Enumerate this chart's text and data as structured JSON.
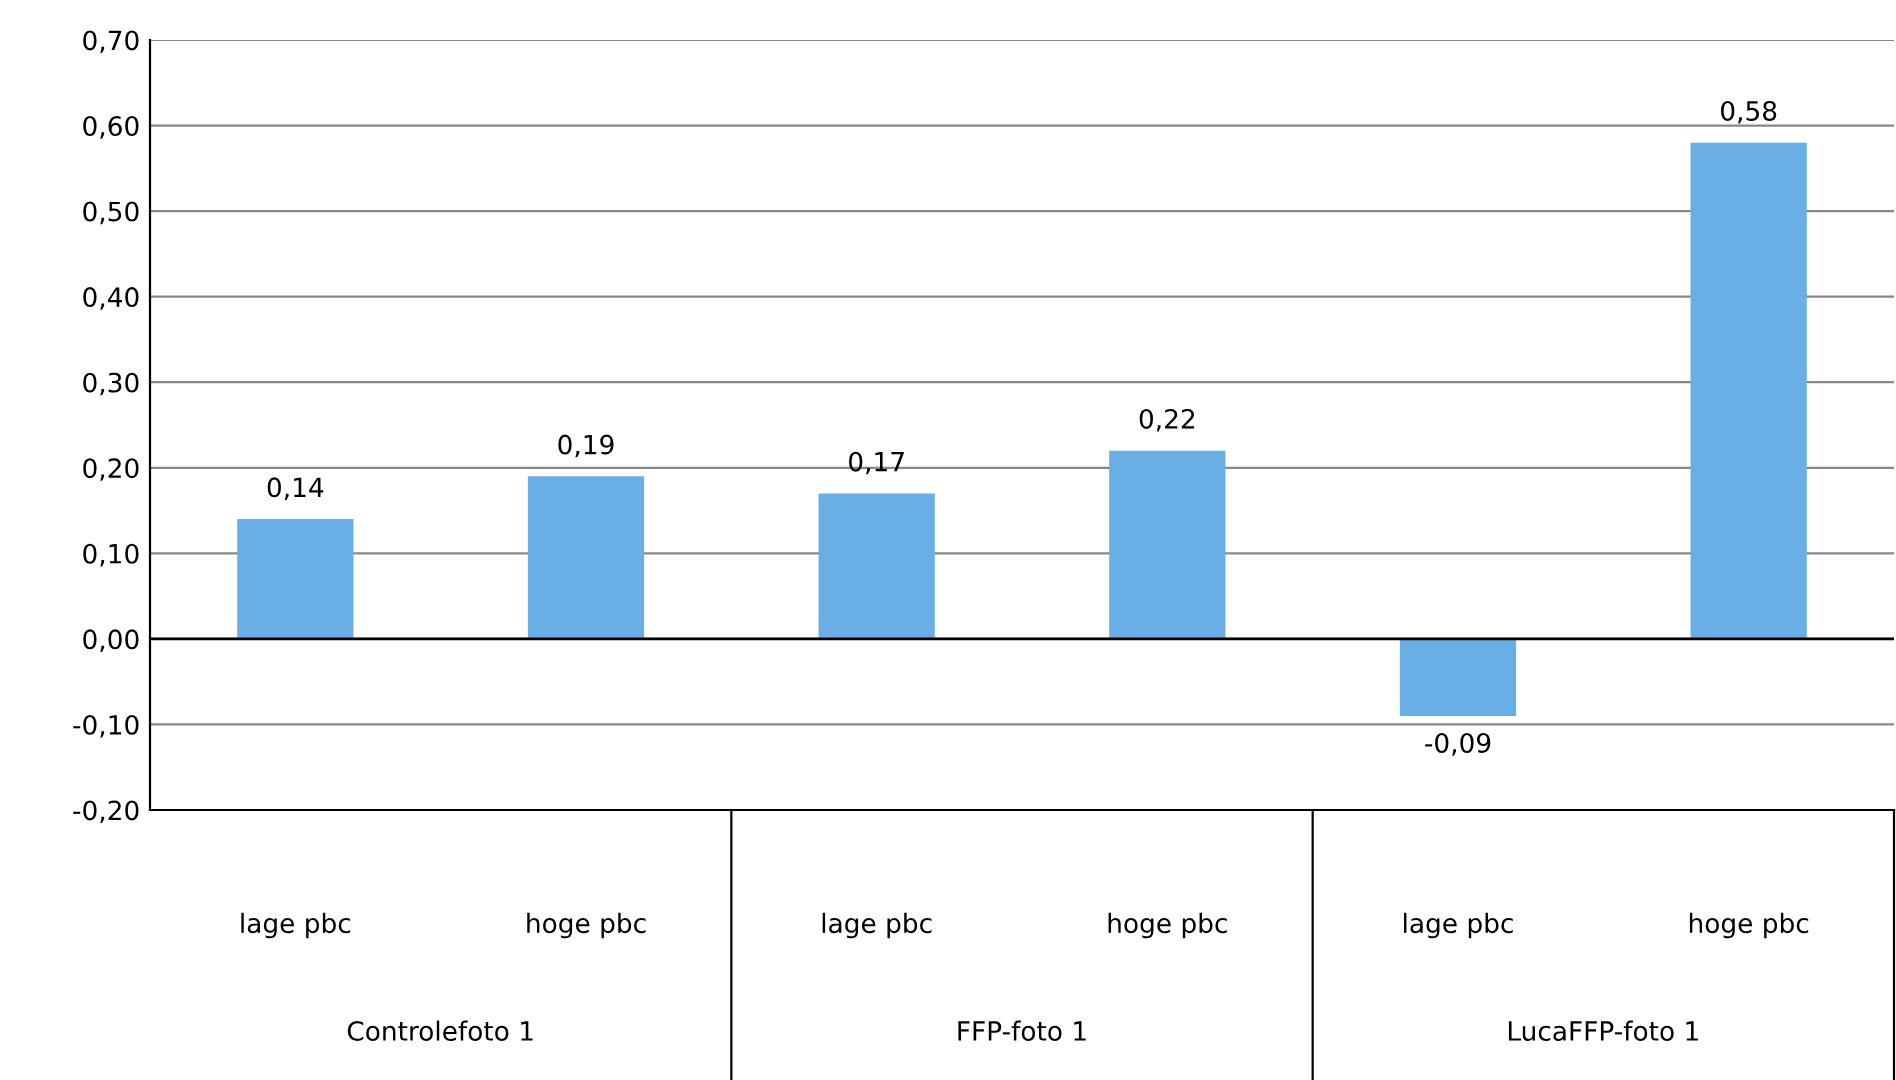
{
  "chart_data": {
    "type": "bar",
    "categories": [
      "lage pbc",
      "hoge pbc",
      "lage pbc",
      "hoge pbc",
      "lage pbc",
      "hoge pbc"
    ],
    "values": [
      0.14,
      0.19,
      0.17,
      0.22,
      -0.09,
      0.58
    ],
    "value_labels": [
      "0,14",
      "0,19",
      "0,17",
      "0,22",
      "-0,09",
      "0,58"
    ],
    "color": "#6aaee6",
    "ylim": [
      -0.2,
      0.7
    ],
    "yticks": [
      {
        "value": -0.2,
        "label": "-0,20"
      },
      {
        "value": -0.1,
        "label": "-0,10"
      },
      {
        "value": 0.0,
        "label": "0,00"
      },
      {
        "value": 0.1,
        "label": "0,10"
      },
      {
        "value": 0.2,
        "label": "0,20"
      },
      {
        "value": 0.3,
        "label": "0,30"
      },
      {
        "value": 0.4,
        "label": "0,40"
      },
      {
        "value": 0.5,
        "label": "0,50"
      },
      {
        "value": 0.6,
        "label": "0,60"
      },
      {
        "value": 0.7,
        "label": "0,70"
      }
    ],
    "grid": "y",
    "annotations": [
      "Controlefoto 1",
      "FFP-foto 1",
      "LucaFFP-foto 1"
    ]
  }
}
